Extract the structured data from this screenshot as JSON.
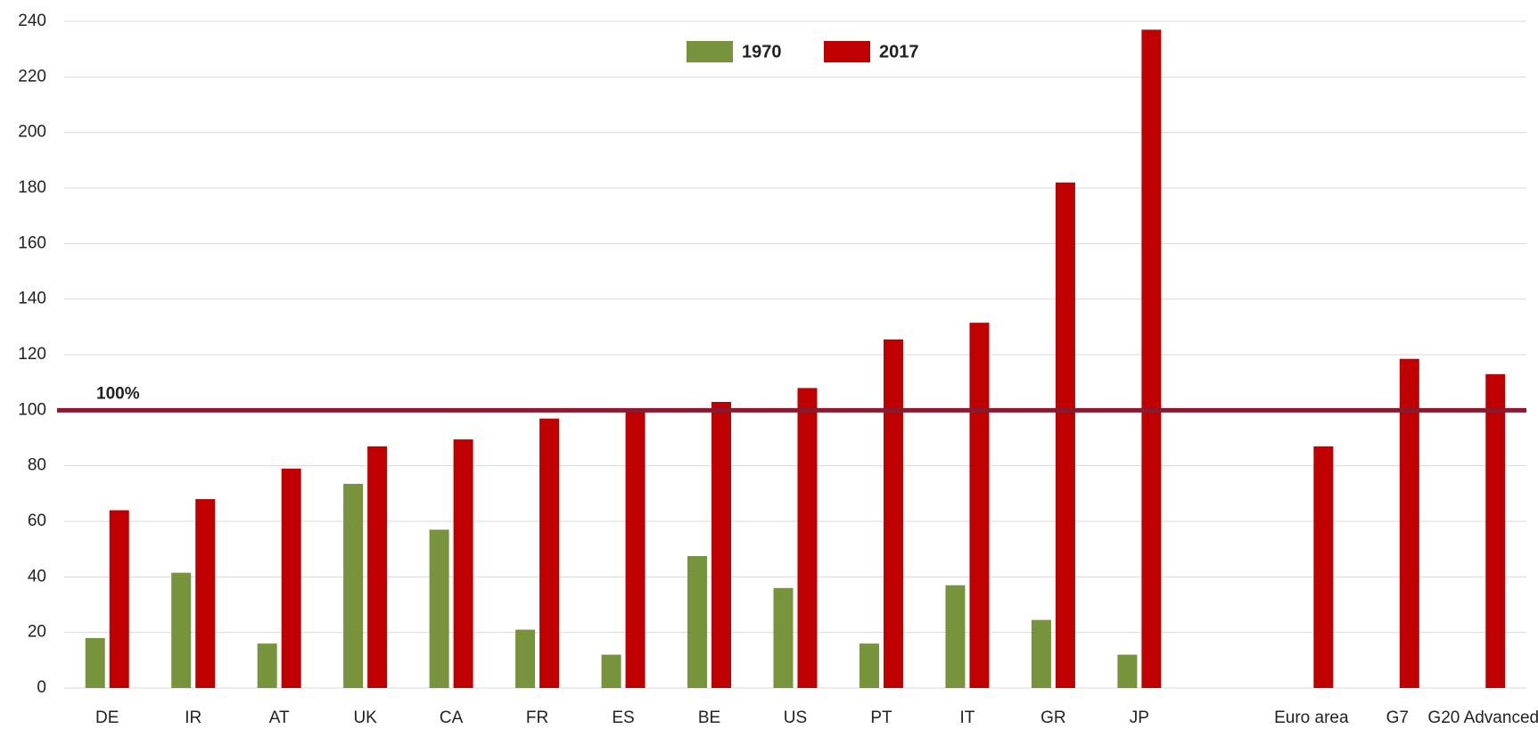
{
  "chart_data": {
    "type": "bar",
    "categories": [
      "DE",
      "IR",
      "AT",
      "UK",
      "CA",
      "FR",
      "ES",
      "BE",
      "US",
      "PT",
      "IT",
      "GR",
      "JP",
      null,
      "Euro area",
      "G7",
      "G20 Advanced"
    ],
    "series": [
      {
        "name": "1970",
        "color": "#77933c",
        "values": [
          18,
          41.5,
          16,
          73.5,
          57,
          21,
          12,
          47.5,
          36,
          16,
          37,
          24.5,
          12,
          null,
          null,
          null,
          null
        ]
      },
      {
        "name": "2017",
        "color": "#c00000",
        "values": [
          64,
          68,
          79,
          87,
          89.5,
          97,
          100,
          103,
          108,
          125.5,
          131.5,
          182,
          237,
          null,
          87,
          118.5,
          113
        ]
      }
    ],
    "ylim": [
      0,
      240
    ],
    "yticks": [
      0,
      20,
      40,
      60,
      80,
      100,
      120,
      140,
      160,
      180,
      200,
      220,
      240
    ],
    "grid": true,
    "legend": "top",
    "reference_line": {
      "value": 100,
      "label": "100%",
      "color": "#8b1a2e"
    }
  }
}
